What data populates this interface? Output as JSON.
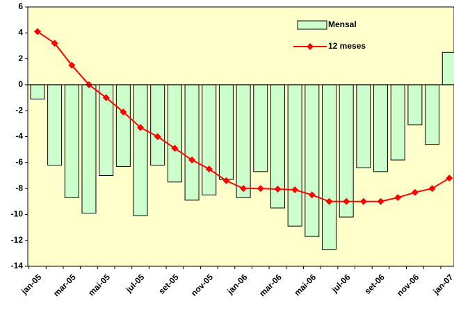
{
  "chart_data": {
    "type": "combo",
    "categories": [
      "jan-05",
      null,
      "mar-05",
      null,
      "mai-05",
      null,
      "jul-05",
      null,
      "set-05",
      null,
      "nov-05",
      null,
      "jan-06",
      null,
      "mar-06",
      null,
      "mai-06",
      null,
      "jul-06",
      null,
      "set-06",
      null,
      "nov-06",
      null,
      "jan-07"
    ],
    "series": [
      {
        "name": "Mensal",
        "type": "bar",
        "color": "#ccffcc",
        "values": [
          -1.1,
          -6.2,
          -8.7,
          -9.9,
          -7.0,
          -6.3,
          -10.1,
          -6.2,
          -7.5,
          -8.9,
          -8.5,
          -7.3,
          -8.7,
          -6.7,
          -9.5,
          -10.9,
          -11.7,
          -12.7,
          -10.2,
          -6.4,
          -6.7,
          -5.8,
          -3.1,
          -4.6,
          2.5
        ]
      },
      {
        "name": "12 meses",
        "type": "line",
        "color": "#ff0000",
        "values": [
          4.1,
          3.2,
          1.5,
          0.0,
          -1.0,
          -2.1,
          -3.3,
          -4.0,
          -4.9,
          -5.8,
          -6.5,
          -7.4,
          -8.0,
          -8.0,
          -8.05,
          -8.1,
          -8.5,
          -9.0,
          -9.0,
          -9.0,
          -9.0,
          -8.7,
          -8.3,
          -8.0,
          -7.2
        ]
      }
    ],
    "ylim": [
      -14,
      6
    ],
    "yticks": [
      -14,
      -12,
      -10,
      -8,
      -6,
      -4,
      -2,
      0,
      2,
      4,
      6
    ],
    "grid": false,
    "legend": "top-right",
    "plot_background": "#ffffcc"
  }
}
